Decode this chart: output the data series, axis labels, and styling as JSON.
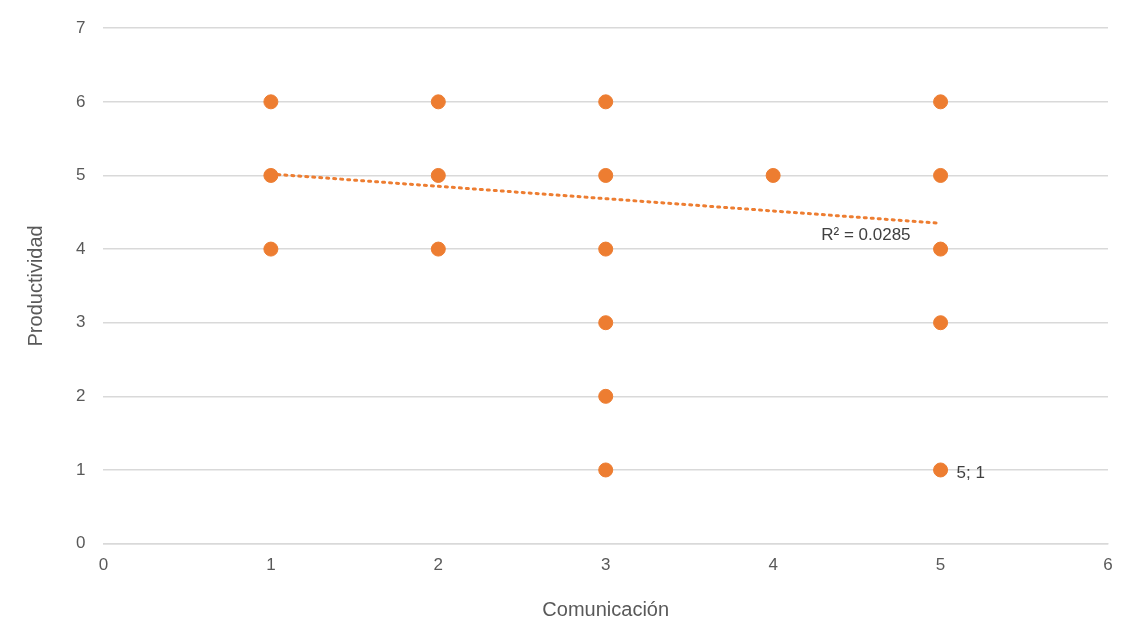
{
  "chart_data": {
    "type": "scatter",
    "xlabel": "Comunicación",
    "ylabel": "Productividad",
    "xlim": [
      0,
      6
    ],
    "xticks": [
      0,
      1,
      2,
      3,
      4,
      5,
      6
    ],
    "ylim": [
      0,
      7
    ],
    "yticks": [
      0,
      1,
      2,
      3,
      4,
      5,
      6,
      7
    ],
    "grid": "y",
    "legend": false,
    "marker": "circle",
    "series": [
      {
        "color": "#ed7d31",
        "x": [
          1,
          1,
          1,
          2,
          2,
          2,
          3,
          3,
          3,
          3,
          3,
          3,
          4,
          5,
          5,
          5,
          5,
          5
        ],
        "values": [
          6,
          5,
          4,
          6,
          5,
          4,
          6,
          5,
          4,
          3,
          2,
          1,
          5,
          6,
          5,
          4,
          3,
          1
        ],
        "value_labels": [
          null,
          null,
          null,
          null,
          null,
          null,
          null,
          null,
          null,
          null,
          null,
          null,
          null,
          null,
          null,
          null,
          null,
          "5; 1"
        ]
      },
      {
        "type": "line",
        "color": "#ed7d31",
        "line_style": "dotted",
        "marker": "none",
        "x": [
          1,
          5
        ],
        "values": [
          5.02,
          4.35
        ]
      }
    ],
    "annotations": [
      "R² = 0.0285"
    ]
  }
}
